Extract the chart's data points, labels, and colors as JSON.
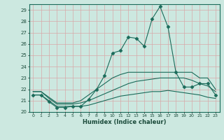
{
  "title": "",
  "xlabel": "Humidex (Indice chaleur)",
  "bg_color": "#cce8e0",
  "line_color": "#1a6b5a",
  "grid_color": "#e8b8b8",
  "xlim": [
    -0.5,
    23.5
  ],
  "ylim": [
    20,
    29.5
  ],
  "yticks": [
    20,
    21,
    22,
    23,
    24,
    25,
    26,
    27,
    28,
    29
  ],
  "xticks": [
    0,
    1,
    2,
    3,
    4,
    5,
    6,
    7,
    8,
    9,
    10,
    11,
    12,
    13,
    14,
    15,
    16,
    17,
    18,
    19,
    20,
    21,
    22,
    23
  ],
  "series": [
    {
      "x": [
        0,
        1,
        2,
        3,
        4,
        5,
        6,
        7,
        8,
        9,
        10,
        11,
        12,
        13,
        14,
        15,
        16,
        17,
        18,
        19,
        20,
        21,
        22,
        23
      ],
      "y": [
        21.5,
        21.5,
        20.9,
        20.4,
        20.4,
        20.5,
        20.5,
        21.1,
        22.0,
        23.2,
        25.2,
        25.4,
        26.6,
        26.5,
        25.8,
        28.2,
        29.3,
        27.5,
        23.5,
        22.2,
        22.2,
        22.5,
        22.5,
        21.5
      ],
      "marker": "D",
      "markersize": 2.5
    },
    {
      "x": [
        0,
        1,
        2,
        3,
        4,
        5,
        6,
        7,
        8,
        9,
        10,
        11,
        12,
        13,
        14,
        15,
        16,
        17,
        18,
        19,
        20,
        21,
        22,
        23
      ],
      "y": [
        21.8,
        21.8,
        21.3,
        20.8,
        20.8,
        20.8,
        21.0,
        21.5,
        22.0,
        22.5,
        23.0,
        23.3,
        23.5,
        23.5,
        23.5,
        23.5,
        23.5,
        23.5,
        23.5,
        23.5,
        23.5,
        23.0,
        23.0,
        22.0
      ],
      "marker": null,
      "markersize": 0
    },
    {
      "x": [
        0,
        1,
        2,
        3,
        4,
        5,
        6,
        7,
        8,
        9,
        10,
        11,
        12,
        13,
        14,
        15,
        16,
        17,
        18,
        19,
        20,
        21,
        22,
        23
      ],
      "y": [
        21.8,
        21.8,
        21.2,
        20.7,
        20.7,
        20.7,
        20.8,
        21.0,
        21.3,
        21.6,
        21.9,
        22.2,
        22.5,
        22.7,
        22.8,
        22.9,
        23.0,
        23.0,
        23.0,
        23.0,
        22.8,
        22.5,
        22.3,
        21.8
      ],
      "marker": null,
      "markersize": 0
    },
    {
      "x": [
        0,
        1,
        2,
        3,
        4,
        5,
        6,
        7,
        8,
        9,
        10,
        11,
        12,
        13,
        14,
        15,
        16,
        17,
        18,
        19,
        20,
        21,
        22,
        23
      ],
      "y": [
        21.5,
        21.5,
        21.0,
        20.5,
        20.5,
        20.5,
        20.5,
        20.6,
        20.8,
        21.0,
        21.2,
        21.4,
        21.5,
        21.6,
        21.7,
        21.8,
        21.8,
        21.9,
        21.8,
        21.7,
        21.6,
        21.5,
        21.3,
        21.2
      ],
      "marker": null,
      "markersize": 0
    }
  ]
}
